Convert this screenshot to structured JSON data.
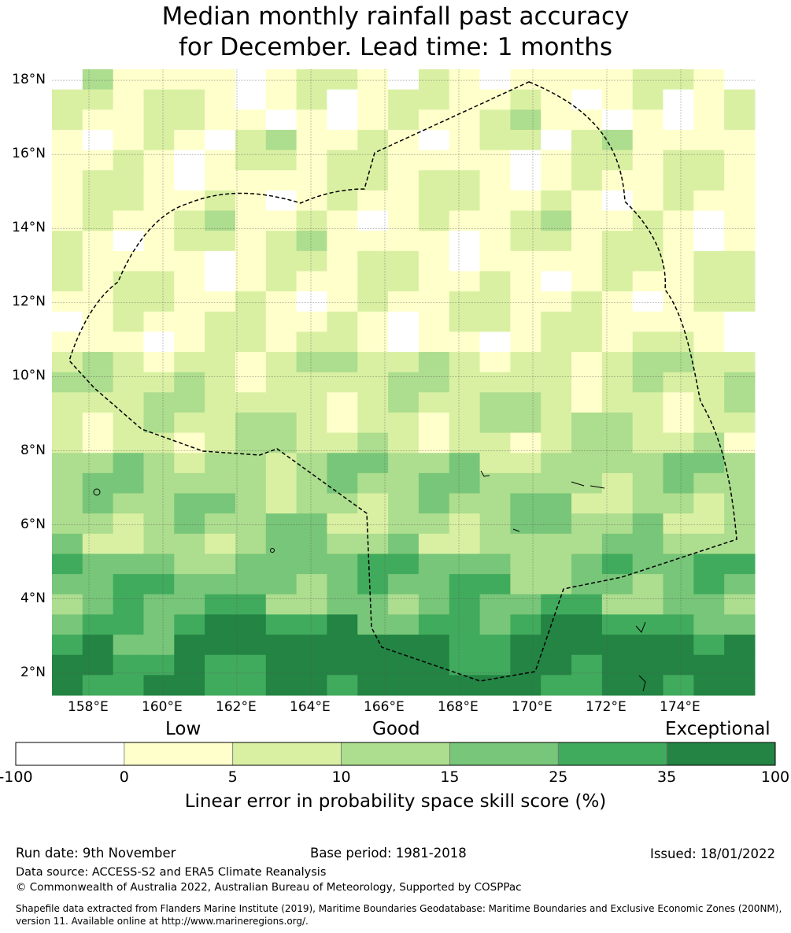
{
  "title_line1": "Median monthly rainfall past accuracy",
  "title_line2": "for December. Lead time: 1 months",
  "map": {
    "lon_range": [
      157.0,
      176.0
    ],
    "lat_range": [
      1.4,
      18.3
    ],
    "lat_labels": [
      "18°N",
      "16°N",
      "14°N",
      "12°N",
      "10°N",
      "8°N",
      "6°N",
      "4°N",
      "2°N"
    ],
    "lon_labels": [
      "158°E",
      "160°E",
      "162°E",
      "164°E",
      "166°E",
      "168°E",
      "170°E",
      "172°E",
      "174°E"
    ],
    "boundary_style": "dashed",
    "gridlines": true
  },
  "colorbar": {
    "categories": [
      "Low",
      "Good",
      "Exceptional"
    ],
    "ticks": [
      "-100",
      "0",
      "5",
      "10",
      "15",
      "25",
      "35",
      "100"
    ],
    "colors": [
      "#ffffff",
      "#ffffcc",
      "#d9f0a3",
      "#addd8e",
      "#78c679",
      "#41ab5d",
      "#238443"
    ],
    "title": "Linear error in probability space skill score (%)"
  },
  "footer": {
    "run_date": "Run date: 9th November",
    "base_period": "Base period: 1981-2018",
    "issued": "Issued: 18/01/2022",
    "data_source": "Data source: ACCESS-S2 and ERA5 Climate Reanalysis",
    "copyright": "© Commonwealth of Australia 2022, Australian Bureau of Meteorology, Supported by COSPPac",
    "shapefile": "Shapefile data extracted from Flanders Marine Institute (2019), Maritime Boundaries Geodatabase: Maritime Boundaries and Exclusive Economic Zones (200NM), version 11. Available online at http://www.marineregions.org/."
  }
}
